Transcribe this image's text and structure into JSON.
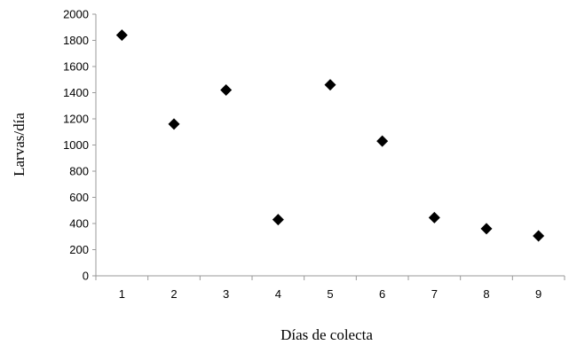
{
  "chart_data": {
    "type": "scatter",
    "title": "",
    "xlabel": "Días de colecta",
    "ylabel": "Larvas/día",
    "x": [
      1,
      2,
      3,
      4,
      5,
      6,
      7,
      8,
      9
    ],
    "y": [
      1840,
      1160,
      1420,
      430,
      1460,
      1030,
      445,
      360,
      305
    ],
    "x_ticks": [
      "1",
      "2",
      "3",
      "4",
      "5",
      "6",
      "7",
      "8",
      "9"
    ],
    "y_ticks": [
      "0",
      "200",
      "400",
      "600",
      "800",
      "1000",
      "1200",
      "1400",
      "1600",
      "1800",
      "2000"
    ],
    "ylim": [
      0,
      2000
    ],
    "marker": "diamond",
    "color": "#000000",
    "grid": false,
    "legend": "none"
  }
}
